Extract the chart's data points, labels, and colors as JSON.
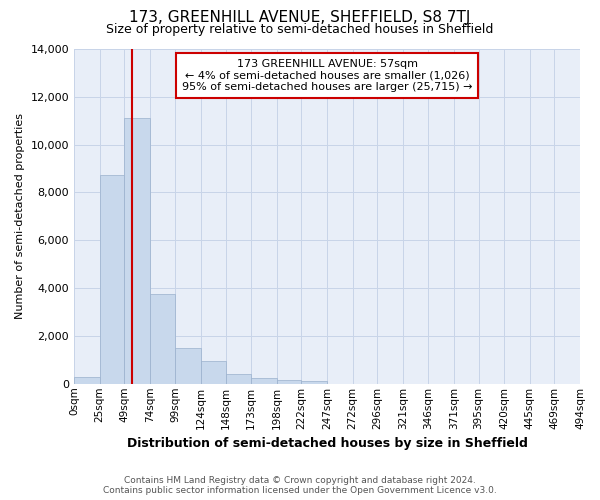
{
  "title": "173, GREENHILL AVENUE, SHEFFIELD, S8 7TJ",
  "subtitle": "Size of property relative to semi-detached houses in Sheffield",
  "xlabel": "Distribution of semi-detached houses by size in Sheffield",
  "ylabel": "Number of semi-detached properties",
  "property_label": "173 GREENHILL AVENUE: 57sqm",
  "pct_smaller": 4,
  "count_smaller": 1026,
  "pct_larger": 95,
  "count_larger": 25715,
  "bin_edges": [
    0,
    25,
    49,
    74,
    99,
    124,
    148,
    173,
    198,
    222,
    247,
    272,
    296,
    321,
    346,
    371,
    395,
    420,
    445,
    469,
    494
  ],
  "bin_labels": [
    "0sqm",
    "25sqm",
    "49sqm",
    "74sqm",
    "99sqm",
    "124sqm",
    "148sqm",
    "173sqm",
    "198sqm",
    "222sqm",
    "247sqm",
    "272sqm",
    "296sqm",
    "321sqm",
    "346sqm",
    "371sqm",
    "395sqm",
    "420sqm",
    "445sqm",
    "469sqm",
    "494sqm"
  ],
  "bar_heights": [
    300,
    8750,
    11100,
    3750,
    1500,
    950,
    400,
    250,
    150,
    100,
    0,
    0,
    0,
    0,
    0,
    0,
    0,
    0,
    0,
    0
  ],
  "bar_color": "#c8d8ec",
  "bar_edge_color": "#9ab0cc",
  "vline_color": "#cc0000",
  "vline_x": 57,
  "annotation_box_color": "#cc0000",
  "ylim": [
    0,
    14000
  ],
  "yticks": [
    0,
    2000,
    4000,
    6000,
    8000,
    10000,
    12000,
    14000
  ],
  "grid_color": "#c8d4e8",
  "bg_color": "#e8eef8",
  "footer_line1": "Contains HM Land Registry data © Crown copyright and database right 2024.",
  "footer_line2": "Contains public sector information licensed under the Open Government Licence v3.0."
}
